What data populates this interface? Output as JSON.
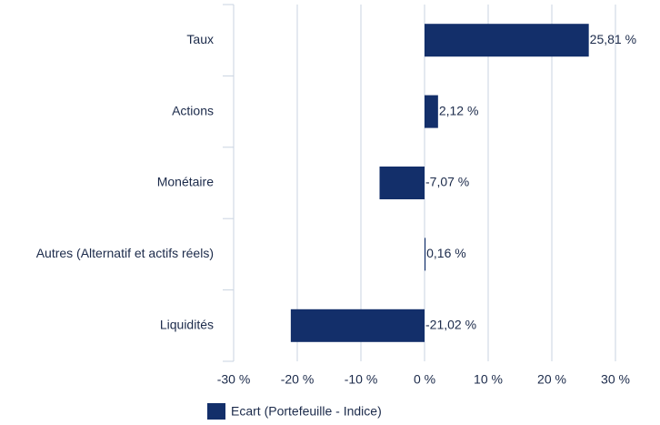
{
  "chart_data": {
    "type": "barh",
    "categories": [
      "Taux",
      "Actions",
      "Monétaire",
      "Autres (Alternatif et actifs réels)",
      "Liquidités"
    ],
    "series": [
      {
        "name": "Ecart (Portefeuille - Indice)",
        "color": "#132f6a",
        "values": [
          25.81,
          2.12,
          -7.07,
          0.16,
          -21.02
        ],
        "value_labels": [
          "25,81 %",
          "2,12 %",
          "-7,07 %",
          "0,16 %",
          "-21,02 %"
        ]
      }
    ],
    "xlim": [
      -30,
      30
    ],
    "xticks": [
      {
        "value": -30,
        "label": "-30 %"
      },
      {
        "value": -20,
        "label": "-20 %"
      },
      {
        "value": -10,
        "label": "-10 %"
      },
      {
        "value": 0,
        "label": "0 %"
      },
      {
        "value": 10,
        "label": "10 %"
      },
      {
        "value": 20,
        "label": "20 %"
      },
      {
        "value": 30,
        "label": "30 %"
      }
    ],
    "grid": true,
    "legend": "bottom"
  }
}
